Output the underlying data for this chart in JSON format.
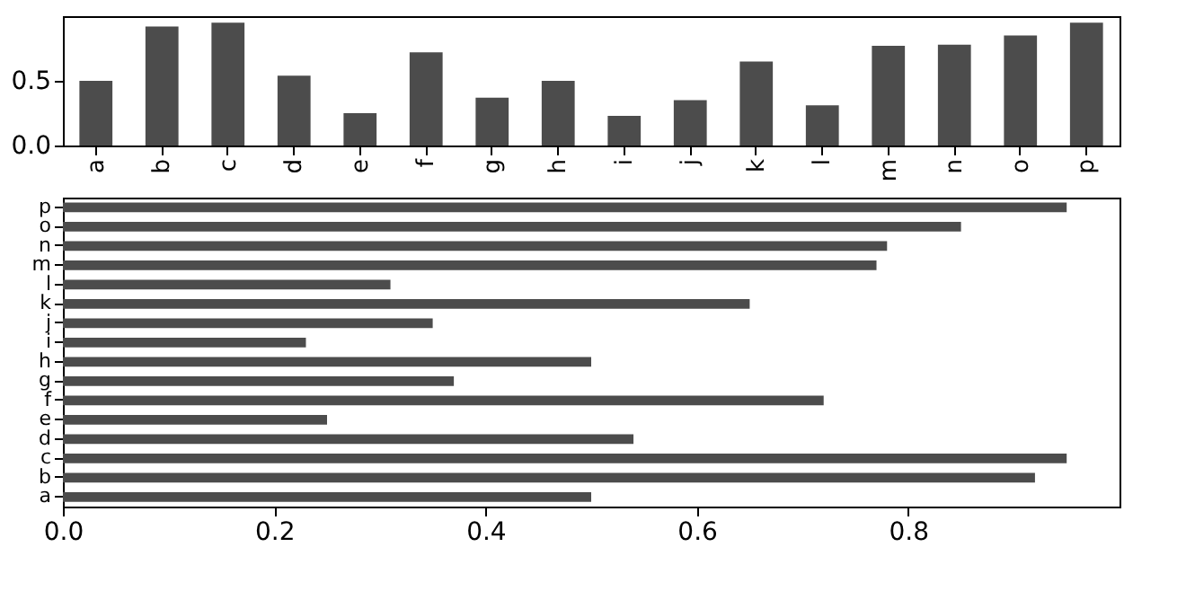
{
  "chart_data": [
    {
      "type": "bar",
      "categories": [
        "a",
        "b",
        "c",
        "d",
        "e",
        "f",
        "g",
        "h",
        "i",
        "j",
        "k",
        "l",
        "m",
        "n",
        "o",
        "p"
      ],
      "values": [
        0.5,
        0.92,
        0.95,
        0.54,
        0.25,
        0.72,
        0.37,
        0.5,
        0.23,
        0.35,
        0.65,
        0.31,
        0.77,
        0.78,
        0.85,
        0.95
      ],
      "color": "#4c4c4c",
      "ylim": [
        0,
        1.0
      ],
      "yticks": [
        {
          "value": 0,
          "label": "0.0"
        },
        0.5
      ],
      "grid": false
    },
    {
      "type": "bar",
      "orientation": "horizontal",
      "categories": [
        "p",
        "o",
        "n",
        "m",
        "l",
        "k",
        "j",
        "i",
        "h",
        "g",
        "f",
        "e",
        "d",
        "c",
        "b",
        "a"
      ],
      "values": [
        0.95,
        0.85,
        0.78,
        0.77,
        0.31,
        0.65,
        0.35,
        0.23,
        0.5,
        0.37,
        0.72,
        0.25,
        0.54,
        0.95,
        0.92,
        0.5
      ],
      "color": "#4c4c4c",
      "xlim": [
        0,
        1.0
      ],
      "xticks": [
        {
          "value": 0,
          "label": "0.0"
        },
        0.2,
        0.4,
        0.6,
        0.8
      ],
      "grid": false
    }
  ]
}
